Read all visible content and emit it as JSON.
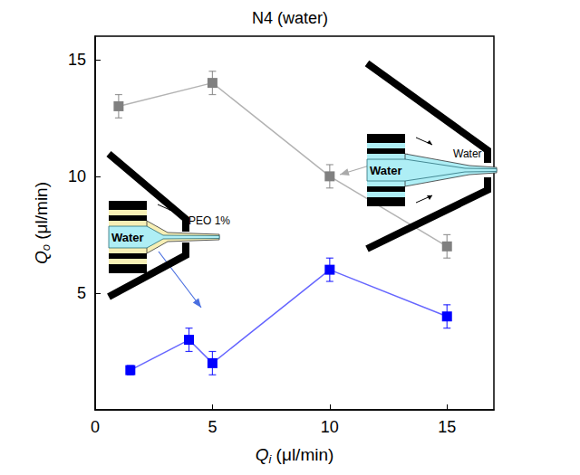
{
  "chart_data": {
    "type": "line",
    "title": "N4 (water)",
    "x_label": {
      "main": "Q",
      "sub": "i",
      "unit": "(μl/min)"
    },
    "y_label": {
      "main": "Q",
      "sub": "o",
      "unit": "(μl/min)"
    },
    "xlim": [
      0,
      17
    ],
    "xticks": [
      0,
      5,
      10,
      15
    ],
    "ylim": [
      0,
      16
    ],
    "yticks": [
      5,
      10,
      15
    ],
    "grid": false,
    "marker": "square",
    "series": [
      {
        "color": "#808080",
        "x": [
          1,
          5,
          10,
          15
        ],
        "values": [
          13,
          14,
          10,
          7
        ],
        "errors": [
          0.5,
          0.5,
          0.5,
          0.5
        ]
      },
      {
        "color": "#0000ff",
        "x": [
          1.5,
          4,
          5,
          10,
          15
        ],
        "values": [
          1.7,
          3,
          2,
          6,
          4
        ],
        "errors": [
          0.2,
          0.5,
          0.5,
          0.5,
          0.5
        ]
      }
    ],
    "annotations": [
      {
        "inner": "Water",
        "outer": "Water"
      },
      {
        "inner": "Water",
        "outer": "PEO 1%"
      }
    ]
  }
}
